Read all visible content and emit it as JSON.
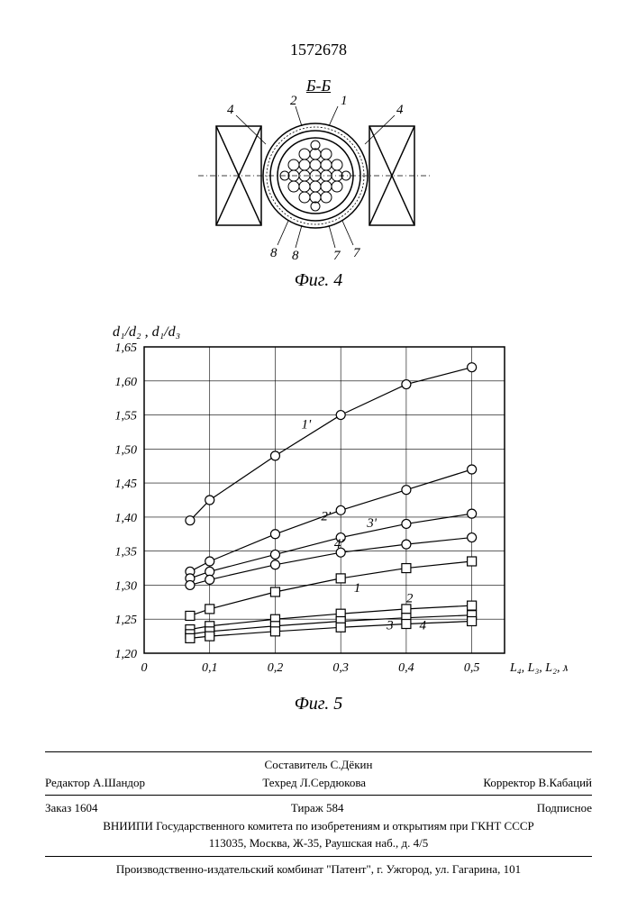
{
  "page_number": "1572678",
  "section_label": "Б-Б",
  "fig4": {
    "caption": "Фиг. 4",
    "labels": [
      "2",
      "1",
      "4",
      "4",
      "8",
      "8",
      "7",
      "7"
    ],
    "colors": {
      "stroke": "#000000",
      "hatch": "#000000",
      "background": "#ffffff"
    }
  },
  "chart": {
    "caption": "Фиг. 5",
    "y_axis_label": "d₁/d₂ , d₁/d₃",
    "x_axis_label": "L₄, L₃, L₂, м",
    "ylim": [
      1.2,
      1.65
    ],
    "xlim": [
      0,
      0.55
    ],
    "yticks": [
      "1,20",
      "1,25",
      "1,30",
      "1,35",
      "1,40",
      "1,45",
      "1,50",
      "1,55",
      "1,60",
      "1,65"
    ],
    "xticks": [
      "0",
      "0,1",
      "0,2",
      "0,3",
      "0,4",
      "0,5"
    ],
    "grid_color": "#000000",
    "background": "#ffffff",
    "series": [
      {
        "label": "1'",
        "marker": "circle",
        "stroke": "#000",
        "points": [
          [
            0.07,
            1.395
          ],
          [
            0.1,
            1.425
          ],
          [
            0.2,
            1.49
          ],
          [
            0.3,
            1.55
          ],
          [
            0.4,
            1.595
          ],
          [
            0.5,
            1.62
          ]
        ]
      },
      {
        "label": "2'",
        "marker": "circle",
        "stroke": "#000",
        "points": [
          [
            0.07,
            1.32
          ],
          [
            0.1,
            1.335
          ],
          [
            0.2,
            1.375
          ],
          [
            0.3,
            1.41
          ],
          [
            0.4,
            1.44
          ],
          [
            0.5,
            1.47
          ]
        ]
      },
      {
        "label": "3'",
        "marker": "circle",
        "stroke": "#000",
        "points": [
          [
            0.07,
            1.31
          ],
          [
            0.1,
            1.32
          ],
          [
            0.2,
            1.345
          ],
          [
            0.3,
            1.37
          ],
          [
            0.4,
            1.39
          ],
          [
            0.5,
            1.405
          ]
        ]
      },
      {
        "label": "4'",
        "marker": "circle",
        "stroke": "#000",
        "points": [
          [
            0.07,
            1.3
          ],
          [
            0.1,
            1.308
          ],
          [
            0.2,
            1.33
          ],
          [
            0.3,
            1.348
          ],
          [
            0.4,
            1.36
          ],
          [
            0.5,
            1.37
          ]
        ]
      },
      {
        "label": "1",
        "marker": "square",
        "stroke": "#000",
        "points": [
          [
            0.07,
            1.255
          ],
          [
            0.1,
            1.265
          ],
          [
            0.2,
            1.29
          ],
          [
            0.3,
            1.31
          ],
          [
            0.4,
            1.325
          ],
          [
            0.5,
            1.335
          ]
        ]
      },
      {
        "label": "2",
        "marker": "square",
        "stroke": "#000",
        "points": [
          [
            0.07,
            1.235
          ],
          [
            0.1,
            1.24
          ],
          [
            0.2,
            1.25
          ],
          [
            0.3,
            1.258
          ],
          [
            0.4,
            1.265
          ],
          [
            0.5,
            1.27
          ]
        ]
      },
      {
        "label": "3",
        "marker": "square",
        "stroke": "#000",
        "points": [
          [
            0.07,
            1.228
          ],
          [
            0.1,
            1.232
          ],
          [
            0.2,
            1.24
          ],
          [
            0.3,
            1.247
          ],
          [
            0.4,
            1.252
          ],
          [
            0.5,
            1.256
          ]
        ]
      },
      {
        "label": "4",
        "marker": "square",
        "stroke": "#000",
        "points": [
          [
            0.07,
            1.222
          ],
          [
            0.1,
            1.225
          ],
          [
            0.2,
            1.232
          ],
          [
            0.3,
            1.238
          ],
          [
            0.4,
            1.243
          ],
          [
            0.5,
            1.247
          ]
        ]
      }
    ],
    "series_label_positions": {
      "1'": [
        0.24,
        1.53
      ],
      "2'": [
        0.27,
        1.395
      ],
      "3'": [
        0.34,
        1.385
      ],
      "4'": [
        0.29,
        1.355
      ],
      "1": [
        0.32,
        1.29
      ],
      "2": [
        0.4,
        1.275
      ],
      "3": [
        0.37,
        1.235
      ],
      "4": [
        0.42,
        1.235
      ]
    },
    "line_width": 1.2,
    "marker_size": 5,
    "font_size_ticks": 14,
    "font_size_axis_label": 16
  },
  "footer": {
    "compiler": "Составитель С.Дёкин",
    "editor": "Редактор А.Шандор",
    "tech": "Техред Л.Сердюкова",
    "corrector": "Корректор В.Кабаций",
    "order": "Заказ 1604",
    "circulation": "Тираж 584",
    "subscription": "Подписное",
    "org_line1": "ВНИИПИ Государственного комитета по изобретениям и открытиям при ГКНТ СССР",
    "org_line2": "113035, Москва, Ж-35, Раушская наб., д. 4/5",
    "publisher": "Производственно-издательский комбинат \"Патент\", г. Ужгород, ул. Гагарина, 101"
  }
}
